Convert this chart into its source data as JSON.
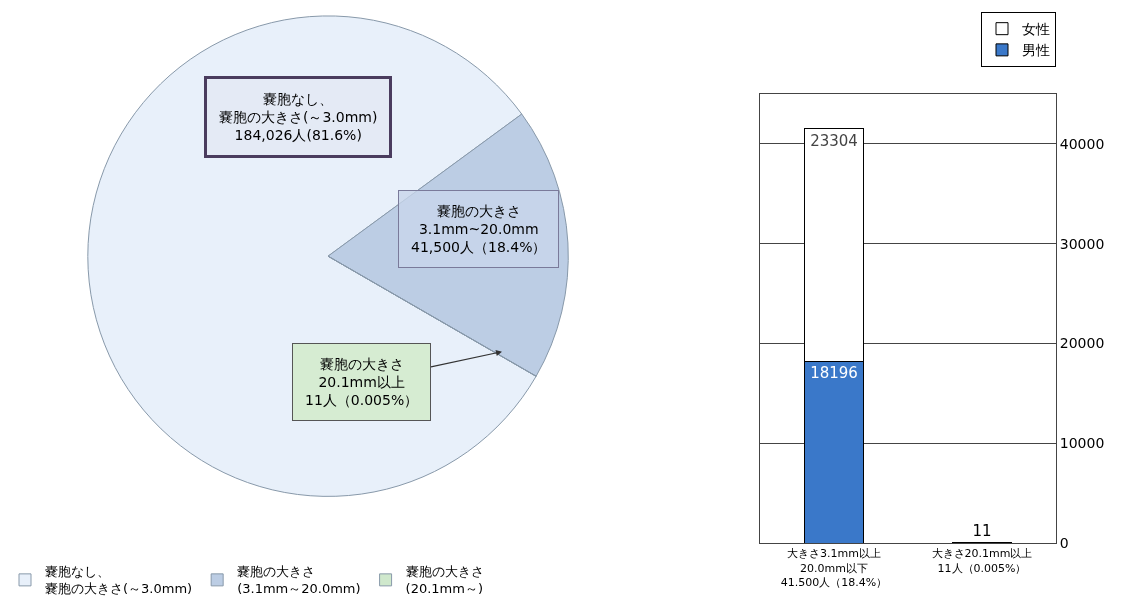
{
  "chart_data": [
    {
      "type": "pie",
      "categories": [
        "嚢胞なし、嚢胞の大きさ(～3.0mm)",
        "嚢胞の大きさ\n(3.1mm～20.0mm)",
        "嚢胞の大きさ\n(20.1mm～)"
      ],
      "values": [
        81.6,
        18.4,
        0.005
      ],
      "colors": [
        "#e8f0fa",
        "#bccde4",
        "#cfe8cc"
      ],
      "legend": "bottom",
      "annotations": [
        "嚢胞なし、嚢胞の大きさ(～3.0mm)\n184,026人(81.6%)",
        "嚢胞の大きさ\n3.1mm~20.0mm\n41,500人（18.4%）",
        "嚢胞の大きさ\n20.1mm以上\n11人（0.005%）"
      ]
    },
    {
      "type": "bar",
      "stacked": true,
      "categories": [
        "大きさ3.1mm以上\n20.0mm以下\n41.500人（18.4%）",
        "大きさ20.1mm以上\n11人（0.005%）"
      ],
      "series": [
        {
          "name": "男性",
          "color": "#3a78c9",
          "values": [
            18196,
            11
          ]
        },
        {
          "name": "女性",
          "color": "#ffffff",
          "values": [
            23304,
            null
          ]
        }
      ],
      "data_labels": true,
      "ylim": [
        0,
        45000
      ],
      "yticks": [
        0,
        10000,
        20000,
        30000,
        40000
      ],
      "grid": "y",
      "legend": "top right"
    }
  ]
}
